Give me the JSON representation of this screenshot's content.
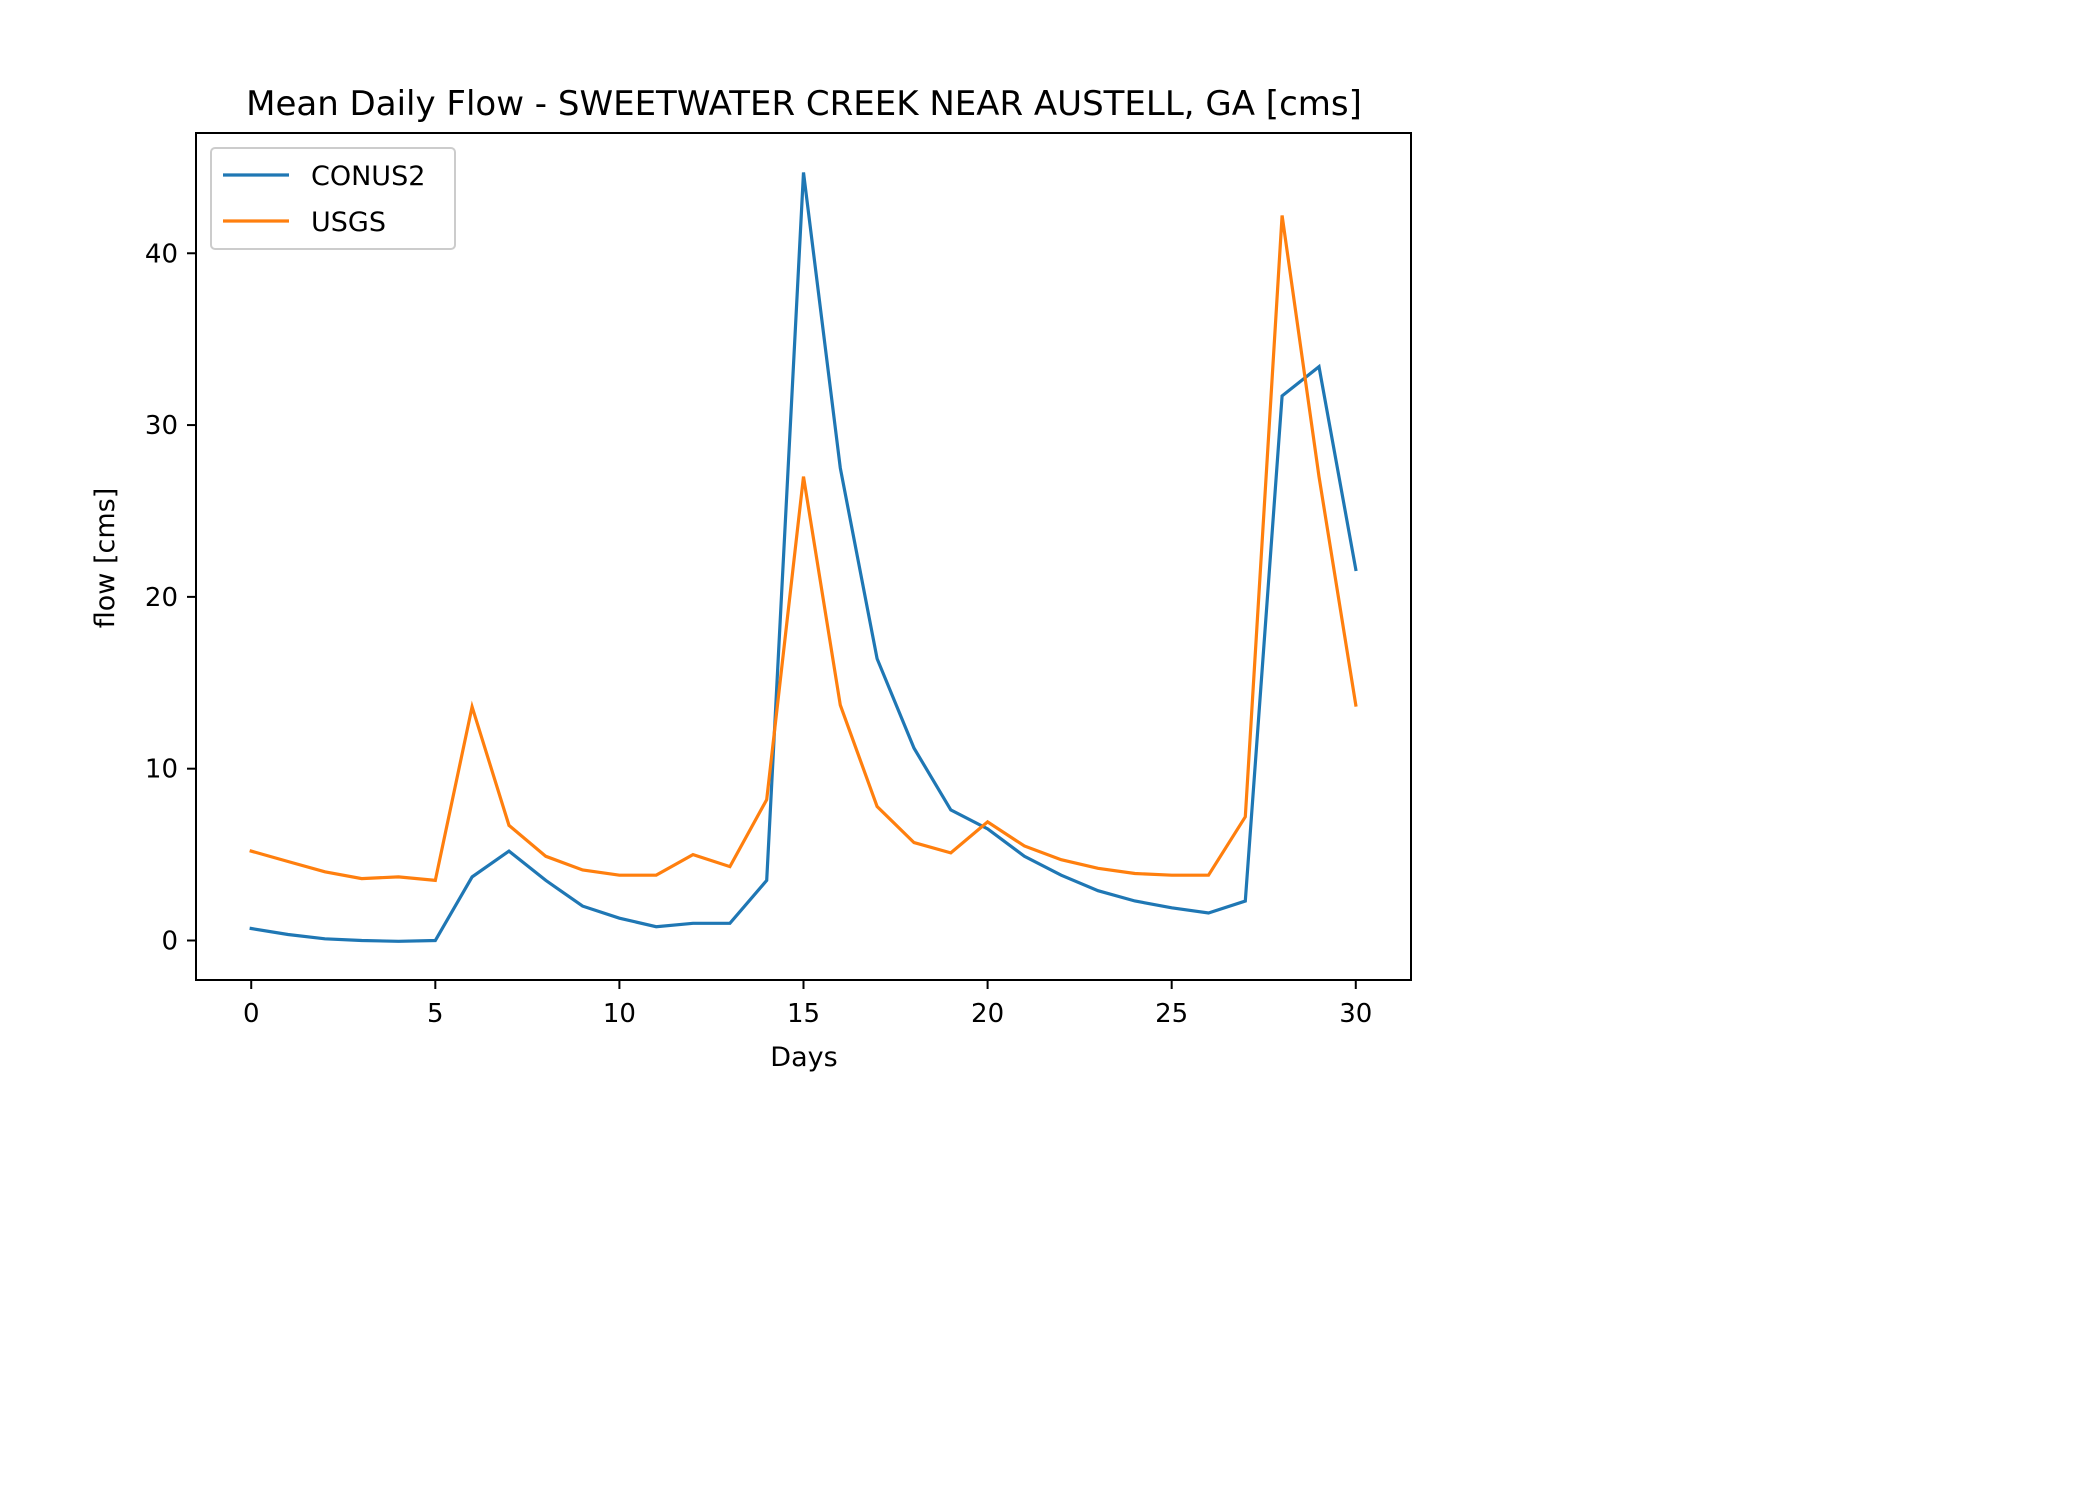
{
  "chart_data": {
    "type": "line",
    "title": "Mean Daily Flow - SWEETWATER CREEK NEAR AUSTELL, GA [cms]",
    "xlabel": "Days",
    "ylabel": "flow [cms]",
    "xlim": [
      -1.5,
      31.5
    ],
    "ylim": [
      -2.3,
      47.0
    ],
    "xticks": [
      0,
      5,
      10,
      15,
      20,
      25,
      30
    ],
    "yticks": [
      0,
      10,
      20,
      30,
      40
    ],
    "grid": false,
    "legend_position": "upper-left",
    "x": [
      0,
      1,
      2,
      3,
      4,
      5,
      6,
      7,
      8,
      9,
      10,
      11,
      12,
      13,
      14,
      15,
      16,
      17,
      18,
      19,
      20,
      21,
      22,
      23,
      24,
      25,
      26,
      27,
      28,
      29,
      30
    ],
    "series": [
      {
        "name": "CONUS2",
        "color": "#1f77b4",
        "values": [
          0.7,
          0.35,
          0.1,
          0.0,
          -0.05,
          0.0,
          3.7,
          5.2,
          3.5,
          2.0,
          1.3,
          0.8,
          1.0,
          1.0,
          3.5,
          44.7,
          27.5,
          16.4,
          11.2,
          7.6,
          6.5,
          4.9,
          3.8,
          2.9,
          2.3,
          1.9,
          1.6,
          2.3,
          31.7,
          33.4,
          21.6
        ]
      },
      {
        "name": "USGS",
        "color": "#ff7f0e",
        "values": [
          5.2,
          4.6,
          4.0,
          3.6,
          3.7,
          3.5,
          13.6,
          6.7,
          4.9,
          4.1,
          3.8,
          3.8,
          5.0,
          4.3,
          8.2,
          27.0,
          13.7,
          7.8,
          5.7,
          5.1,
          6.9,
          5.5,
          4.7,
          4.2,
          3.9,
          3.8,
          3.8,
          7.2,
          42.2,
          27.0,
          13.7
        ]
      }
    ]
  }
}
